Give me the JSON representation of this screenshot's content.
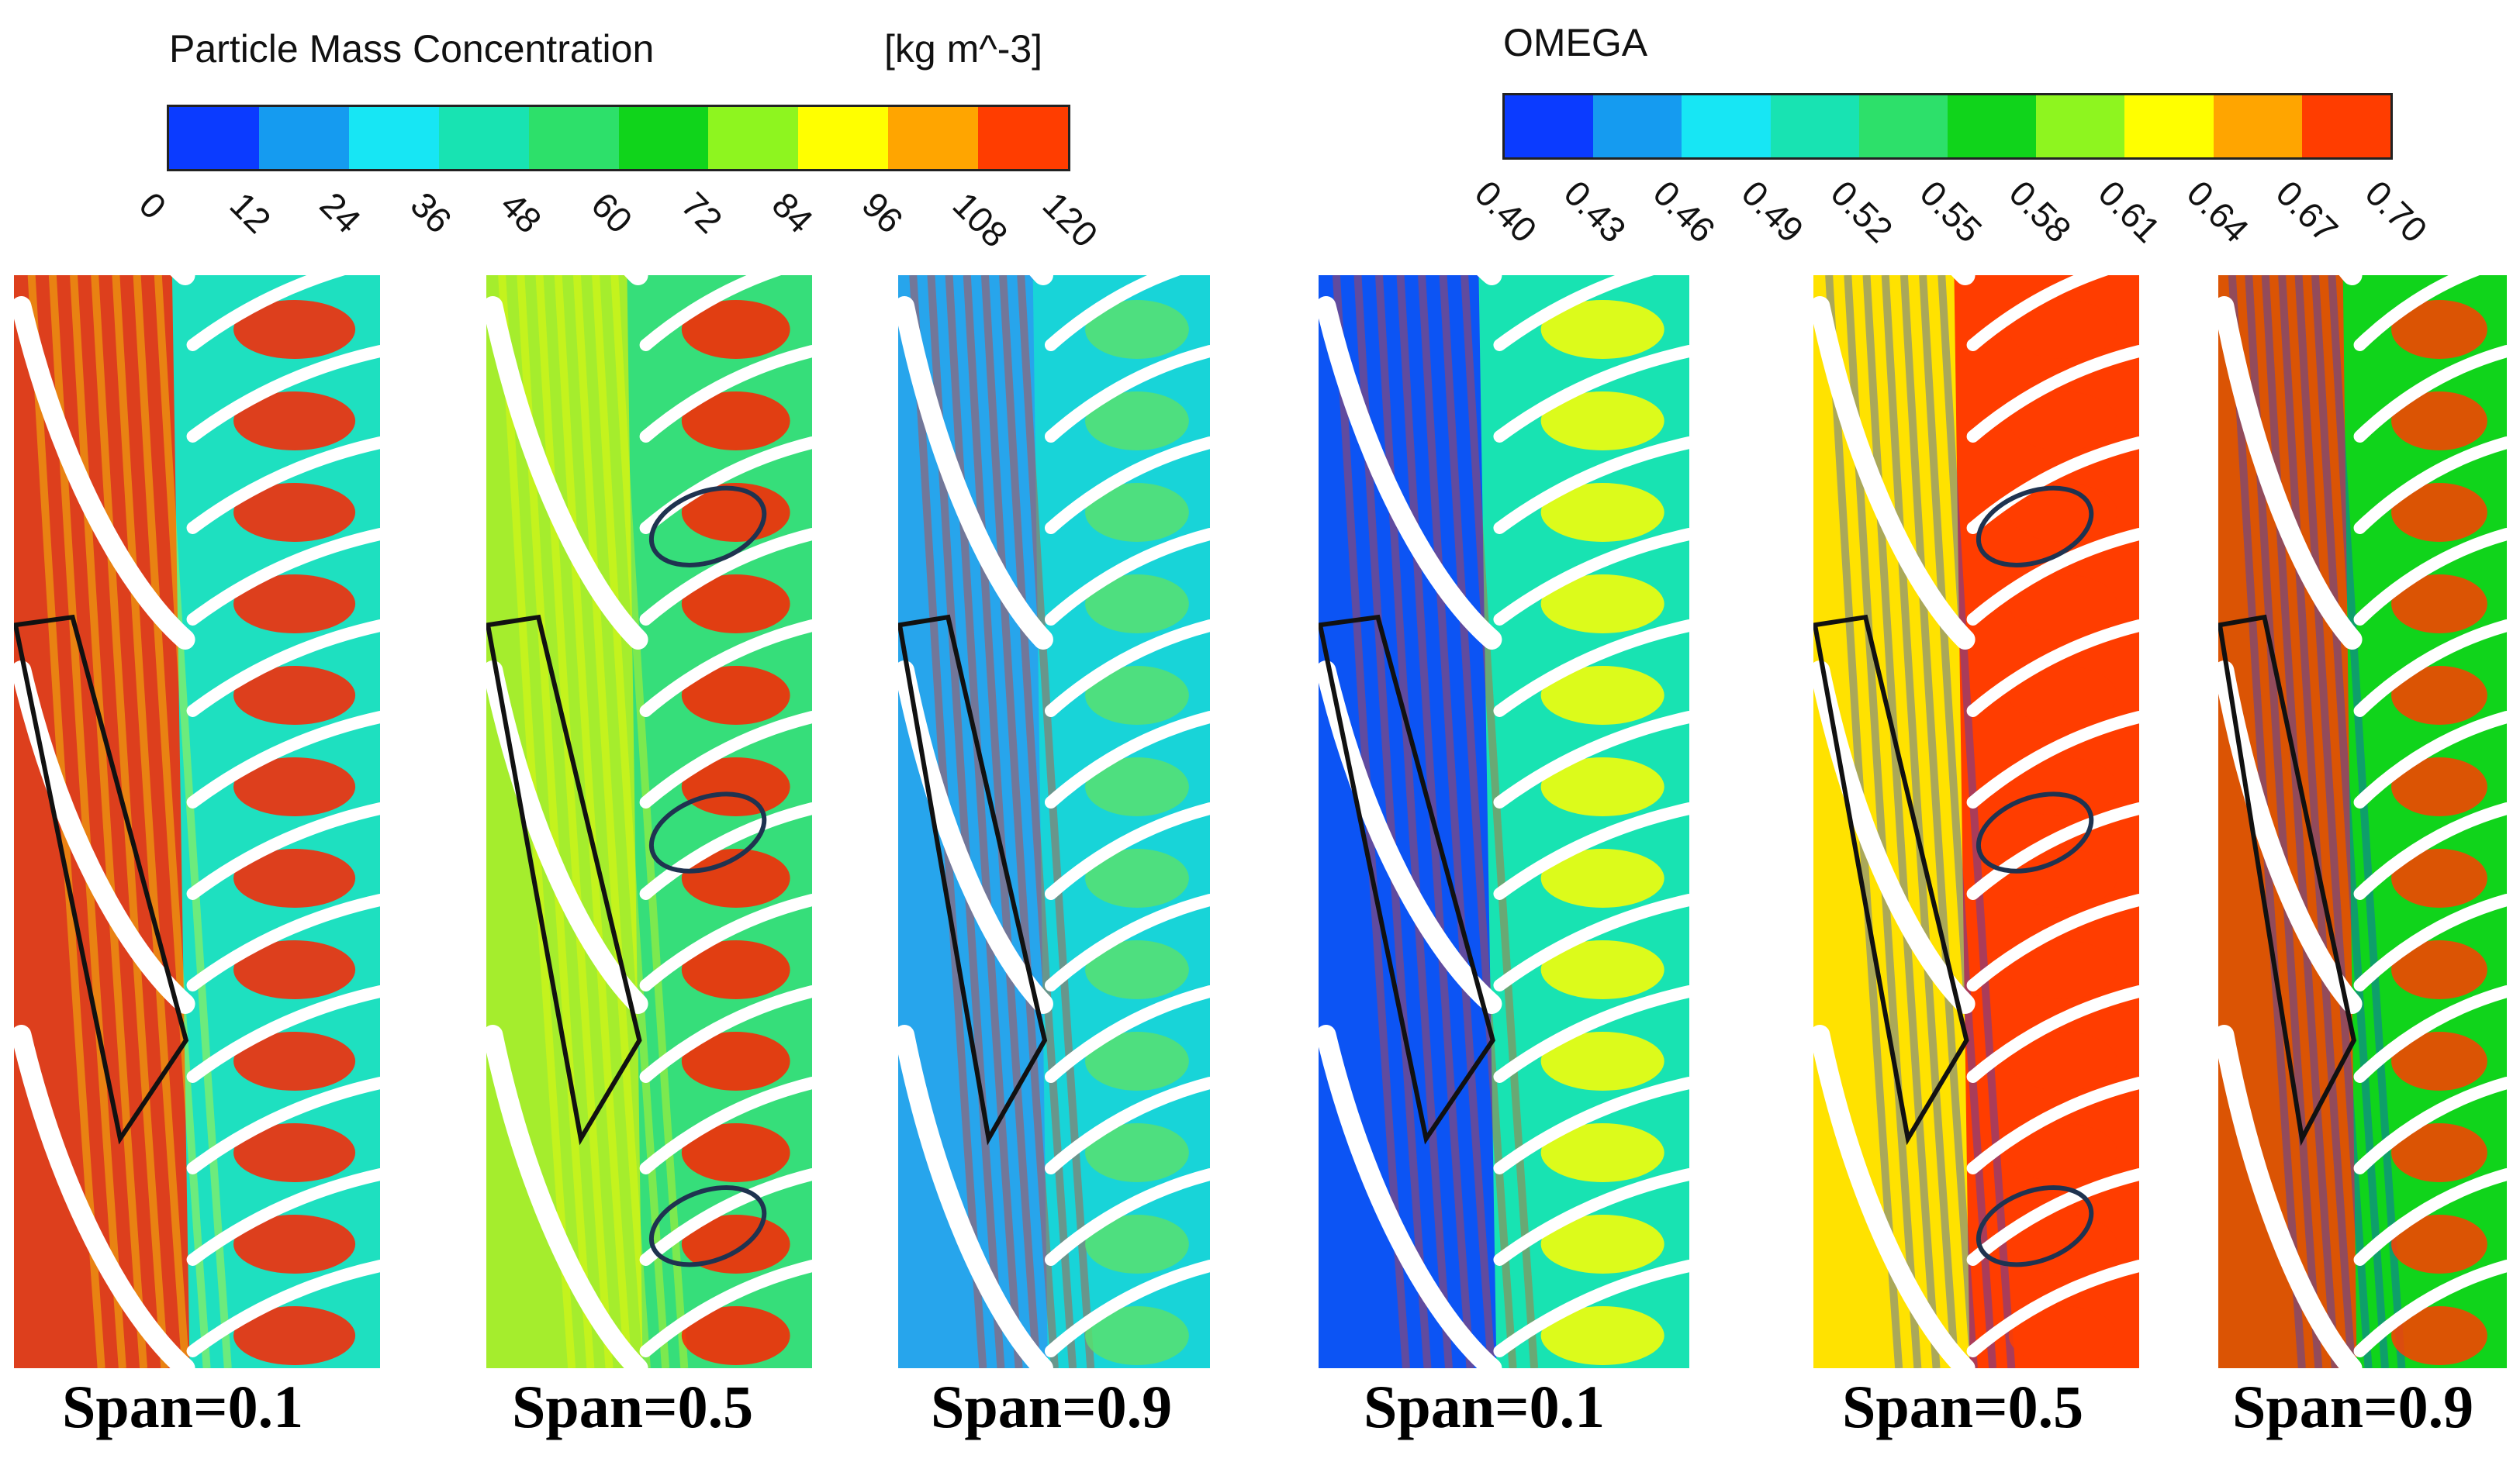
{
  "legends": [
    {
      "id": "concentration",
      "title": "Particle Mass Concentration",
      "unit": "[kg m^-3]",
      "ticks": [
        "0",
        "12",
        "24",
        "36",
        "48",
        "60",
        "72",
        "84",
        "96",
        "108",
        "120"
      ],
      "colors": [
        "#0b3bff",
        "#159bf0",
        "#17e6f4",
        "#18e3b2",
        "#2de06a",
        "#10d41b",
        "#8ef51f",
        "#ffff00",
        "#ffa500",
        "#ff3d00"
      ]
    },
    {
      "id": "omega",
      "title": "OMEGA",
      "unit": "",
      "ticks": [
        "0.40",
        "0.43",
        "0.46",
        "0.49",
        "0.52",
        "0.55",
        "0.58",
        "0.61",
        "0.64",
        "0.67",
        "0.70"
      ],
      "colors": [
        "#0b3bff",
        "#159bf0",
        "#17e6f4",
        "#18e3b2",
        "#2de06a",
        "#10d41b",
        "#8ef51f",
        "#ffff00",
        "#ffa500",
        "#ff3d00"
      ]
    }
  ],
  "panels": [
    {
      "label": "Span=0.1",
      "field": "concentration",
      "base": "#1ee0c0",
      "stator": "#ff2200",
      "rotor": "#ff2200",
      "accent": "#ffff00",
      "ellipses": 0
    },
    {
      "label": "Span=0.5",
      "field": "concentration",
      "base": "#36de7a",
      "stator": "#b8f020",
      "rotor": "#ff2200",
      "accent": "#ffff00",
      "ellipses": 3
    },
    {
      "label": "Span=0.9",
      "field": "concentration",
      "base": "#18d4d8",
      "stator": "#2a9cf0",
      "rotor": "#58e070",
      "accent": "#ff2200",
      "ellipses": 0
    },
    {
      "label": "Span=0.1",
      "field": "omega",
      "base": "#18e3b2",
      "stator": "#0b3bff",
      "rotor": "#ffff00",
      "accent": "#ff3d00",
      "ellipses": 0
    },
    {
      "label": "Span=0.5",
      "field": "omega",
      "base": "#ff3d00",
      "stator": "#ffff00",
      "rotor": "#ff3d00",
      "accent": "#0b3bff",
      "ellipses": 3
    },
    {
      "label": "Span=0.9",
      "field": "omega",
      "base": "#10d41b",
      "stator": "#ff3d00",
      "rotor": "#ff3d00",
      "accent": "#0b3bff",
      "ellipses": 0
    }
  ]
}
